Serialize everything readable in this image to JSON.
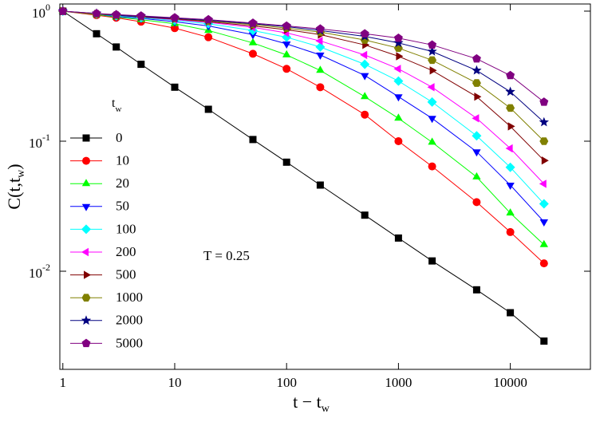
{
  "chart_data": {
    "type": "line",
    "log_x": true,
    "log_y": true,
    "x": [
      1,
      2,
      3,
      5,
      10,
      20,
      50,
      100,
      200,
      500,
      1000,
      2000,
      5000,
      10000,
      20000
    ],
    "xlim": [
      0.94,
      52000
    ],
    "ylim": [
      0.00176,
      1.135
    ],
    "xticks": [
      1,
      10,
      100,
      1000,
      10000
    ],
    "yticks": [
      {
        "value": 1,
        "label": "10",
        "sup": "0"
      },
      {
        "value": 0.1,
        "label": "10",
        "sup": "-1"
      },
      {
        "value": 0.01,
        "label": "10",
        "sup": "-2"
      }
    ],
    "xlabel": "t − t",
    "xlabel_sub": "w",
    "ylabel": "C(t,t",
    "ylabel_sub": "w",
    "ylabel_end": ")",
    "legend_title": "t",
    "legend_title_sub": "w",
    "legend_position": "lower left",
    "annotation": "T = 0.25",
    "series": [
      {
        "name": "0",
        "color": "#000000",
        "marker": "square",
        "values": [
          1,
          0.67,
          0.53,
          0.39,
          0.26,
          0.176,
          0.103,
          0.069,
          0.046,
          0.027,
          0.018,
          0.012,
          0.0072,
          0.0048,
          0.0029
        ]
      },
      {
        "name": "10",
        "color": "#ff0000",
        "marker": "circle",
        "values": [
          1,
          0.93,
          0.89,
          0.83,
          0.74,
          0.63,
          0.47,
          0.36,
          0.26,
          0.16,
          0.1,
          0.064,
          0.034,
          0.02,
          0.0115
        ]
      },
      {
        "name": "20",
        "color": "#00ff00",
        "marker": "triangle-up",
        "values": [
          1,
          0.94,
          0.9,
          0.86,
          0.8,
          0.71,
          0.57,
          0.46,
          0.35,
          0.22,
          0.15,
          0.098,
          0.053,
          0.028,
          0.016
        ]
      },
      {
        "name": "50",
        "color": "#0000ff",
        "marker": "triangle-down",
        "values": [
          1,
          0.95,
          0.91,
          0.88,
          0.83,
          0.77,
          0.66,
          0.56,
          0.46,
          0.32,
          0.22,
          0.15,
          0.083,
          0.046,
          0.024
        ]
      },
      {
        "name": "100",
        "color": "#00ffff",
        "marker": "diamond",
        "values": [
          1,
          0.95,
          0.92,
          0.89,
          0.85,
          0.8,
          0.71,
          0.63,
          0.53,
          0.39,
          0.29,
          0.2,
          0.11,
          0.063,
          0.033
        ]
      },
      {
        "name": "200",
        "color": "#ff00ff",
        "marker": "triangle-left",
        "values": [
          1,
          0.95,
          0.93,
          0.9,
          0.86,
          0.82,
          0.75,
          0.68,
          0.59,
          0.46,
          0.36,
          0.26,
          0.15,
          0.088,
          0.047
        ]
      },
      {
        "name": "500",
        "color": "#800000",
        "marker": "triangle-right",
        "values": [
          1,
          0.95,
          0.93,
          0.9,
          0.87,
          0.83,
          0.77,
          0.72,
          0.66,
          0.55,
          0.45,
          0.35,
          0.22,
          0.13,
          0.071
        ]
      },
      {
        "name": "1000",
        "color": "#808000",
        "marker": "hexagon",
        "values": [
          1,
          0.95,
          0.93,
          0.91,
          0.88,
          0.84,
          0.79,
          0.74,
          0.69,
          0.6,
          0.52,
          0.42,
          0.28,
          0.18,
          0.1
        ]
      },
      {
        "name": "2000",
        "color": "#000080",
        "marker": "star",
        "values": [
          1,
          0.96,
          0.93,
          0.91,
          0.88,
          0.85,
          0.8,
          0.76,
          0.71,
          0.64,
          0.57,
          0.49,
          0.35,
          0.24,
          0.14
        ]
      },
      {
        "name": "5000",
        "color": "#800080",
        "marker": "pentagon",
        "values": [
          1,
          0.96,
          0.94,
          0.92,
          0.89,
          0.86,
          0.81,
          0.77,
          0.73,
          0.67,
          0.62,
          0.55,
          0.43,
          0.32,
          0.2
        ]
      }
    ]
  }
}
